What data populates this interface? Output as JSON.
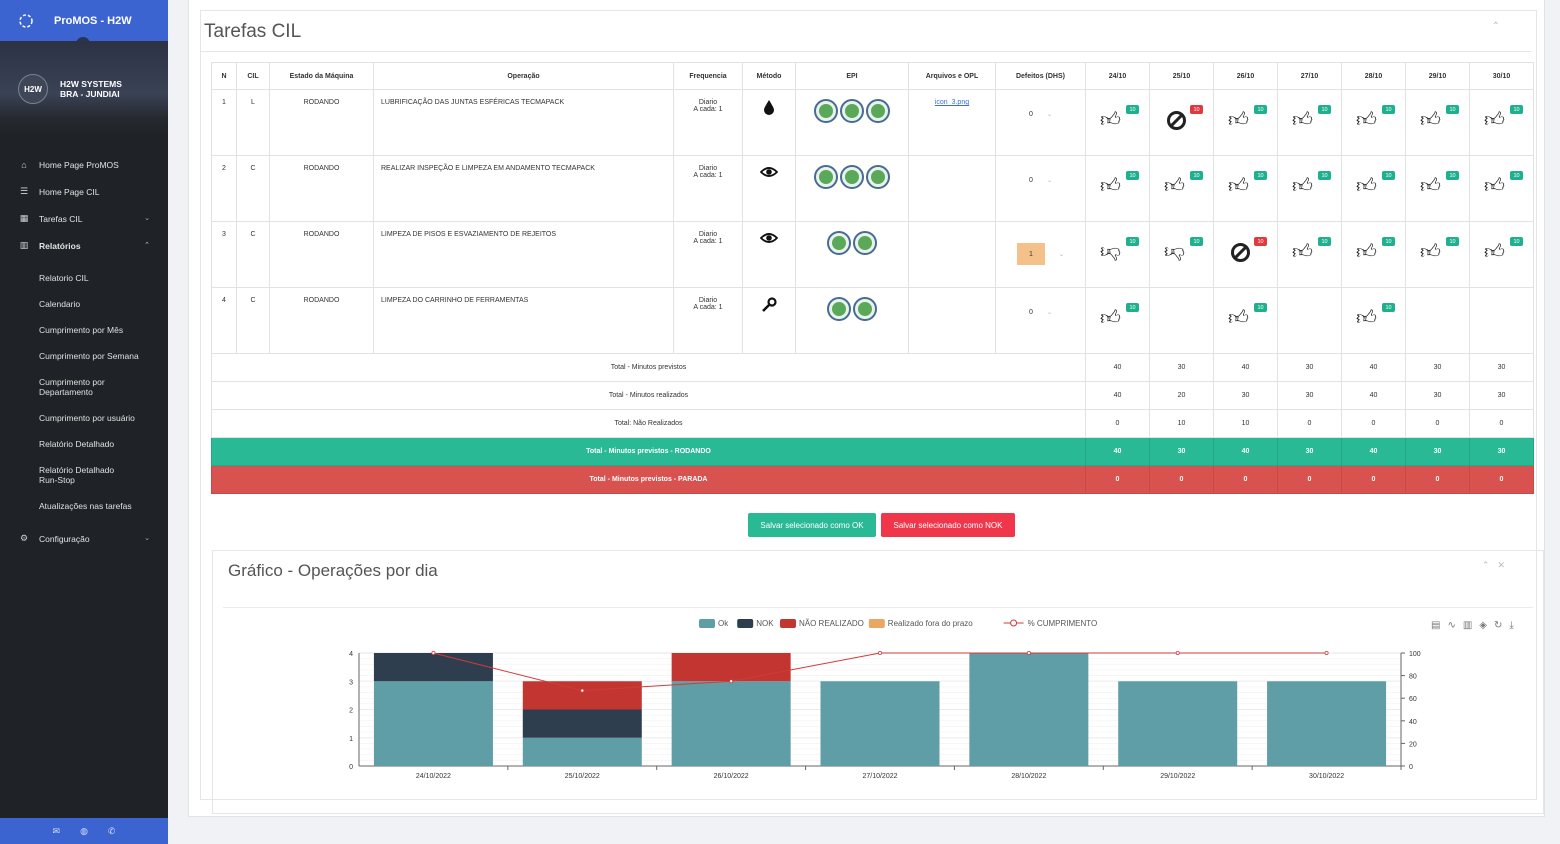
{
  "app": {
    "title": "ProMOS - H2W"
  },
  "user": {
    "avatar": "H2W",
    "name": "H2W SYSTEMS",
    "location": "BRA - JUNDIAI"
  },
  "nav": {
    "items": [
      {
        "label": "Home Page ProMOS",
        "icon": "home-icon"
      },
      {
        "label": "Home Page CIL",
        "icon": "list-icon"
      },
      {
        "label": "Tarefas CIL",
        "icon": "calendar-icon"
      },
      {
        "label": "Relatórios",
        "icon": "chart-icon"
      },
      {
        "label": "Configuração",
        "icon": "gears-icon"
      }
    ],
    "sub": [
      "Relatorio CIL",
      "Calendario",
      "Cumprimento por Mês",
      "Cumprimento por Semana",
      "Cumprimento por Departamento",
      "Cumprimento por usuário",
      "Relatório Detalhado",
      "Relatório Detalhado Run-Stop",
      "Atualizações nas tarefas"
    ]
  },
  "panel": {
    "title": "Tarefas CIL"
  },
  "table": {
    "headers": [
      "N",
      "CIL",
      "Estado da Máquina",
      "Operação",
      "Frequencia",
      "Método",
      "EPI",
      "Arquivos e OPL",
      "Defeitos (DHS)"
    ],
    "days": [
      "24/10",
      "25/10",
      "26/10",
      "27/10",
      "28/10",
      "29/10",
      "30/10"
    ],
    "rows": [
      {
        "n": "1",
        "cil": "L",
        "estado": "RODANDO",
        "op": "LUBRIFICAÇÃO DAS JUNTAS ESFÉRICAS TECMAPACK",
        "freq1": "Diario",
        "freq2": "A cada: 1",
        "metodo": "drop-icon",
        "file": "icon_3.png",
        "def": "0",
        "cells": [
          [
            "up",
            "10"
          ],
          [
            "ban",
            "10"
          ],
          [
            "up",
            "10"
          ],
          [
            "up",
            "10"
          ],
          [
            "up",
            "10"
          ],
          [
            "up",
            "10"
          ],
          [
            "up",
            "10"
          ]
        ]
      },
      {
        "n": "2",
        "cil": "C",
        "estado": "RODANDO",
        "op": "REALIZAR INSPEÇÃO E LIMPEZA EM ANDAMENTO TECMAPACK",
        "freq1": "Diario",
        "freq2": "A cada: 1",
        "metodo": "eye-icon",
        "file": "",
        "def": "0",
        "cells": [
          [
            "up",
            "10"
          ],
          [
            "up",
            "10"
          ],
          [
            "up",
            "10"
          ],
          [
            "up",
            "10"
          ],
          [
            "up",
            "10"
          ],
          [
            "up",
            "10"
          ],
          [
            "up",
            "10"
          ]
        ]
      },
      {
        "n": "3",
        "cil": "C",
        "estado": "RODANDO",
        "op": "LIMPEZA DE PISOS E ESVAZIAMENTO DE REJEITOS",
        "freq1": "Diario",
        "freq2": "A cada: 1",
        "metodo": "eye-icon",
        "file": "",
        "def": "1",
        "cells": [
          [
            "down",
            "10"
          ],
          [
            "down",
            "10"
          ],
          [
            "ban",
            "10"
          ],
          [
            "up",
            "10"
          ],
          [
            "up",
            "10"
          ],
          [
            "up",
            "10"
          ],
          [
            "up",
            "10"
          ]
        ]
      },
      {
        "n": "4",
        "cil": "C",
        "estado": "RODANDO",
        "op": "LIMPEZA DO CARRINHO DE FERRAMENTAS",
        "freq1": "Diario",
        "freq2": "A cada: 1",
        "metodo": "wrench-icon",
        "file": "",
        "def": "0",
        "cells": [
          [
            "up",
            "10"
          ],
          [
            "",
            ""
          ],
          [
            "up",
            "10"
          ],
          [
            "",
            ""
          ],
          [
            "up",
            "10"
          ],
          [
            "",
            ""
          ],
          [
            "",
            ""
          ]
        ]
      }
    ],
    "epi_counts": [
      3,
      3,
      2,
      2
    ],
    "totals": [
      {
        "label": "Total - Minutos previstos",
        "values": [
          "40",
          "30",
          "40",
          "30",
          "40",
          "30",
          "30"
        ]
      },
      {
        "label": "Total - Minutos realizados",
        "values": [
          "40",
          "20",
          "30",
          "30",
          "40",
          "30",
          "30"
        ]
      },
      {
        "label": "Total: Não Realizados",
        "values": [
          "0",
          "10",
          "10",
          "0",
          "0",
          "0",
          "0"
        ]
      }
    ],
    "rodando": {
      "label": "Total - Minutos previstos - RODANDO",
      "values": [
        "40",
        "30",
        "40",
        "30",
        "40",
        "30",
        "30"
      ]
    },
    "parada": {
      "label": "Total - Minutos previstos - PARADA",
      "values": [
        "0",
        "0",
        "0",
        "0",
        "0",
        "0",
        "0"
      ]
    }
  },
  "buttons": {
    "ok": "Salvar selecionado como OK",
    "nok": "Salvar selecionado como NOK"
  },
  "chart_panel": {
    "title": "Gráfico - Operações por dia"
  },
  "chart_data": {
    "type": "bar",
    "categories": [
      "24/10/2022",
      "25/10/2022",
      "26/10/2022",
      "27/10/2022",
      "28/10/2022",
      "29/10/2022",
      "30/10/2022"
    ],
    "series": [
      {
        "name": "Ok",
        "color": "#5f9ea6",
        "values": [
          3,
          1,
          3,
          3,
          4,
          3,
          3
        ]
      },
      {
        "name": "NOK",
        "color": "#2f3e4e",
        "values": [
          1,
          1,
          0,
          0,
          0,
          0,
          0
        ]
      },
      {
        "name": "NÃO REALIZADO",
        "color": "#c23531",
        "values": [
          0,
          1,
          1,
          0,
          0,
          0,
          0
        ]
      },
      {
        "name": "Realizado fora do prazo",
        "color": "#eaa764",
        "values": [
          0,
          0,
          0,
          0,
          0,
          0,
          0
        ]
      }
    ],
    "line": {
      "name": "% CUMPRIMENTO",
      "color": "#d33a3a",
      "values": [
        100,
        66.7,
        75,
        100,
        100,
        100,
        100
      ]
    },
    "ylim": [
      0,
      4
    ],
    "y2lim": [
      0,
      100
    ],
    "yticks": [
      "0",
      "1",
      "2",
      "3",
      "4"
    ],
    "y2ticks": [
      "0",
      "20",
      "40",
      "60",
      "80",
      "100"
    ],
    "legend": "top-center",
    "grid": true
  }
}
